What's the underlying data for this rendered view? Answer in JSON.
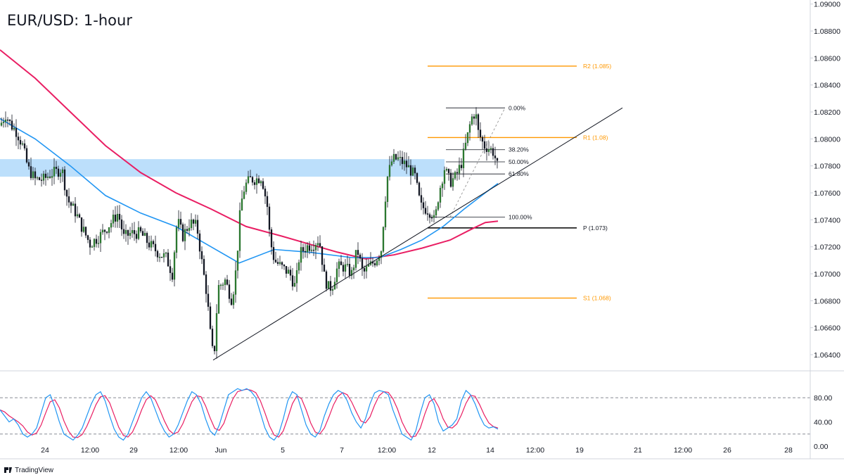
{
  "header": {
    "title": "EUR/USD: 1-hour"
  },
  "brand": {
    "name": "TradingView"
  },
  "chart_data": {
    "type": "candlestick",
    "symbol": "EUR/USD",
    "timeframe": "1-hour",
    "y_axis": {
      "ticks": [
        "1.09000",
        "1.08800",
        "1.08600",
        "1.08400",
        "1.08200",
        "1.08000",
        "1.07800",
        "1.07600",
        "1.07400",
        "1.07200",
        "1.07000",
        "1.06800",
        "1.06600",
        "1.06400"
      ],
      "range": [
        1.0628,
        1.0903
      ]
    },
    "x_axis": {
      "ticks": [
        "24",
        "12:00",
        "29",
        "12:00",
        "Jun",
        "5",
        "7",
        "12:00",
        "12",
        "14",
        "12:00",
        "19",
        "21",
        "12:00",
        "26",
        "28"
      ]
    },
    "price_path": [
      [
        0,
        1.081
      ],
      [
        8,
        1.0818
      ],
      [
        16,
        1.081
      ],
      [
        24,
        1.0805
      ],
      [
        32,
        1.0795
      ],
      [
        40,
        1.0778
      ],
      [
        50,
        1.077
      ],
      [
        62,
        1.077
      ],
      [
        72,
        1.0774
      ],
      [
        82,
        1.0776
      ],
      [
        88,
        1.0778
      ],
      [
        96,
        1.0755
      ],
      [
        108,
        1.0745
      ],
      [
        116,
        1.0735
      ],
      [
        128,
        1.0722
      ],
      [
        142,
        1.0728
      ],
      [
        158,
        1.0738
      ],
      [
        168,
        1.0745
      ],
      [
        176,
        1.0727
      ],
      [
        186,
        1.073
      ],
      [
        200,
        1.073
      ],
      [
        212,
        1.0722
      ],
      [
        226,
        1.0715
      ],
      [
        236,
        1.0712
      ],
      [
        245,
        1.07
      ],
      [
        252,
        1.074
      ],
      [
        260,
        1.0728
      ],
      [
        270,
        1.0738
      ],
      [
        280,
        1.0735
      ],
      [
        288,
        1.0705
      ],
      [
        294,
        1.0685
      ],
      [
        300,
        1.065
      ],
      [
        304,
        1.0636
      ],
      [
        310,
        1.069
      ],
      [
        320,
        1.0695
      ],
      [
        330,
        1.068
      ],
      [
        336,
        1.0705
      ],
      [
        342,
        1.075
      ],
      [
        348,
        1.0765
      ],
      [
        356,
        1.077
      ],
      [
        364,
        1.077
      ],
      [
        372,
        1.0772
      ],
      [
        380,
        1.075
      ],
      [
        384,
        1.0725
      ],
      [
        390,
        1.071
      ],
      [
        400,
        1.0705
      ],
      [
        412,
        1.07
      ],
      [
        420,
        1.069
      ],
      [
        426,
        1.0715
      ],
      [
        436,
        1.072
      ],
      [
        446,
        1.0722
      ],
      [
        452,
        1.0725
      ],
      [
        456,
        1.072
      ],
      [
        460,
        1.07
      ],
      [
        466,
        1.069
      ],
      [
        472,
        1.069
      ],
      [
        480,
        1.0705
      ],
      [
        490,
        1.0705
      ],
      [
        500,
        1.07
      ],
      [
        508,
        1.0718
      ],
      [
        516,
        1.07
      ],
      [
        524,
        1.0705
      ],
      [
        534,
        1.071
      ],
      [
        542,
        1.0718
      ],
      [
        550,
        1.077
      ],
      [
        558,
        1.0785
      ],
      [
        566,
        1.0785
      ],
      [
        574,
        1.0782
      ],
      [
        582,
        1.0778
      ],
      [
        590,
        1.0772
      ],
      [
        598,
        1.075
      ],
      [
        606,
        1.0748
      ],
      [
        614,
        1.0745
      ],
      [
        618,
        1.0738
      ],
      [
        624,
        1.076
      ],
      [
        632,
        1.0778
      ],
      [
        640,
        1.0768
      ],
      [
        648,
        1.0772
      ],
      [
        656,
        1.0782
      ],
      [
        664,
        1.08
      ],
      [
        670,
        1.0815
      ],
      [
        676,
        1.082
      ],
      [
        680,
        1.0805
      ],
      [
        688,
        1.0795
      ],
      [
        696,
        1.0793
      ],
      [
        702,
        1.079
      ],
      [
        708,
        1.0778
      ]
    ],
    "indicators": {
      "ma_fast": {
        "color": "#2196f3",
        "points": [
          [
            0,
            1.0815
          ],
          [
            50,
            1.08
          ],
          [
            100,
            1.078
          ],
          [
            150,
            1.0758
          ],
          [
            200,
            1.0745
          ],
          [
            250,
            1.0735
          ],
          [
            300,
            1.072
          ],
          [
            340,
            1.0708
          ],
          [
            390,
            1.0718
          ],
          [
            440,
            1.0716
          ],
          [
            500,
            1.0712
          ],
          [
            540,
            1.0712
          ],
          [
            570,
            1.0718
          ],
          [
            600,
            1.0725
          ],
          [
            630,
            1.0735
          ],
          [
            660,
            1.0748
          ],
          [
            690,
            1.076
          ],
          [
            708,
            1.0767
          ]
        ]
      },
      "ma_slow": {
        "color": "#e91e63",
        "points": [
          [
            0,
            1.0866
          ],
          [
            50,
            1.0845
          ],
          [
            100,
            1.082
          ],
          [
            150,
            1.0795
          ],
          [
            200,
            1.0775
          ],
          [
            250,
            1.076
          ],
          [
            300,
            1.0748
          ],
          [
            350,
            1.0735
          ],
          [
            400,
            1.0728
          ],
          [
            440,
            1.0722
          ],
          [
            480,
            1.0716
          ],
          [
            520,
            1.0711
          ],
          [
            560,
            1.0714
          ],
          [
            600,
            1.0719
          ],
          [
            640,
            1.0725
          ],
          [
            670,
            1.0733
          ],
          [
            690,
            1.0738
          ],
          [
            708,
            1.0739
          ]
        ]
      }
    },
    "zone": {
      "low": 1.0772,
      "high": 1.0785,
      "color": "#90caf9"
    },
    "trendline": {
      "from": [
        303,
        1.0636
      ],
      "to": [
        885,
        1.0823
      ]
    },
    "pivots": [
      {
        "label": "R2 (1.085)",
        "value": 1.0854,
        "color": "#ff9800"
      },
      {
        "label": "R1 (1.08)",
        "value": 1.0801,
        "color": "#ff9800"
      },
      {
        "label": "P (1.073)",
        "value": 1.0734,
        "color": "#000000"
      },
      {
        "label": "S1 (1.068)",
        "value": 1.0682,
        "color": "#ff9800"
      }
    ],
    "fibonacci": {
      "high": 1.0823,
      "low": 1.0742,
      "levels": [
        {
          "label": "0.00%",
          "value": 1.0823
        },
        {
          "label": "38.20%",
          "value": 1.0792
        },
        {
          "label": "50.00%",
          "value": 1.0783
        },
        {
          "label": "61.80%",
          "value": 1.0774
        },
        {
          "label": "100.00%",
          "value": 1.0742
        }
      ]
    },
    "stochastic": {
      "ticks": [
        "80.00",
        "40.00",
        "0.00"
      ],
      "upper": 80,
      "lower": 20,
      "k_color": "#2196f3",
      "d_color": "#e91e63",
      "k": [
        60,
        50,
        40,
        45,
        35,
        20,
        15,
        20,
        30,
        55,
        80,
        85,
        65,
        40,
        20,
        15,
        10,
        18,
        30,
        50,
        70,
        85,
        90,
        75,
        50,
        28,
        15,
        10,
        20,
        40,
        60,
        80,
        90,
        80,
        60,
        40,
        25,
        15,
        20,
        35,
        55,
        75,
        90,
        85,
        70,
        45,
        25,
        18,
        35,
        60,
        85,
        90,
        95,
        92,
        95,
        90,
        80,
        55,
        30,
        15,
        10,
        20,
        45,
        75,
        90,
        85,
        60,
        35,
        20,
        15,
        25,
        50,
        70,
        85,
        92,
        88,
        75,
        55,
        40,
        30,
        45,
        70,
        88,
        92,
        90,
        85,
        60,
        40,
        20,
        15,
        10,
        25,
        55,
        80,
        85,
        70,
        40,
        25,
        30,
        35,
        45,
        75,
        92,
        85,
        70,
        50,
        35,
        30,
        32,
        28
      ]
    }
  }
}
